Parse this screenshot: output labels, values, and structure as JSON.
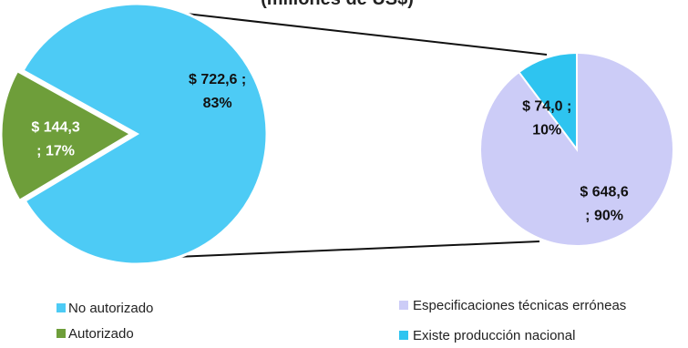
{
  "chart_data": [
    {
      "type": "pie",
      "title": "(millones de US$)",
      "slices": [
        {
          "name": "No autorizado",
          "value": 722.6,
          "percent": 83,
          "color": "#4DCBF5",
          "label_line1": "$ 722,6 ;",
          "label_line2": "83%",
          "label_color": "#111111"
        },
        {
          "name": "Autorizado",
          "value": 144.3,
          "percent": 17,
          "color": "#6E9E3A",
          "label_line1": "$ 144,3",
          "label_line2": "; 17%",
          "label_color": "#ffffff"
        }
      ],
      "exploded_slice": "Autorizado"
    },
    {
      "type": "pie",
      "slices": [
        {
          "name": "Existe producción nacional",
          "value": 74.0,
          "percent": 10,
          "color": "#2EC4F0",
          "label_line1": "$ 74,0 ;",
          "label_line2": "10%",
          "label_color": "#111111"
        },
        {
          "name": "Especificaciones técnicas erróneas",
          "value": 648.6,
          "percent": 90,
          "color": "#CCCCF7",
          "label_line1": "$ 648,6",
          "label_line2": "; 90%",
          "label_color": "#111111"
        }
      ]
    }
  ],
  "legend": {
    "left": [
      {
        "label": "No autorizado",
        "color": "#4DCBF5"
      },
      {
        "label": "Autorizado",
        "color": "#6E9E3A"
      }
    ],
    "right": [
      {
        "label": "Especificaciones técnicas erróneas",
        "color": "#CCCCF7"
      },
      {
        "label": "Existe producción nacional",
        "color": "#2EC4F0"
      }
    ]
  }
}
